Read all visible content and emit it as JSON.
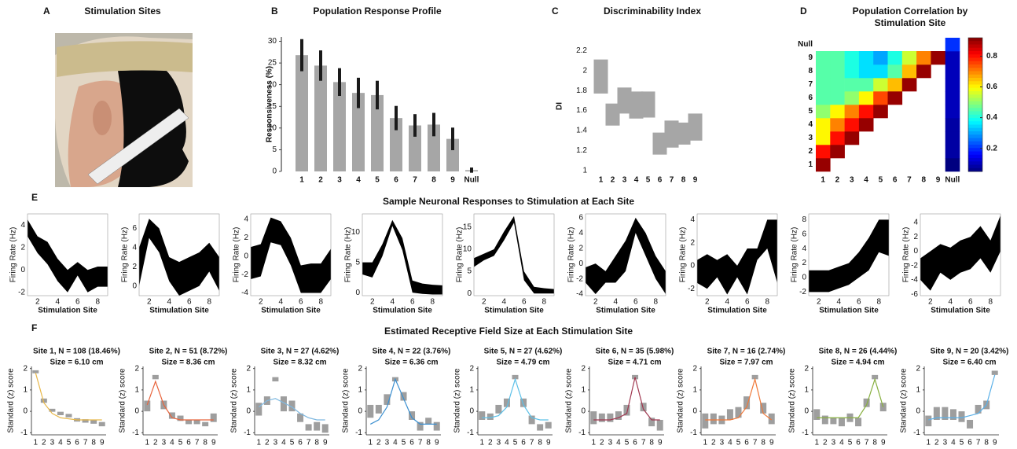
{
  "chart_data": [
    {
      "type": "image",
      "panel": "A",
      "title": "Stimulation Sites"
    },
    {
      "type": "bar",
      "panel": "B",
      "title": "Population Response Profile",
      "ylabel": "Responsiveness (%)",
      "categories": [
        "1",
        "2",
        "3",
        "4",
        "5",
        "6",
        "7",
        "8",
        "9",
        "Null"
      ],
      "values": [
        26.8,
        24.4,
        20.6,
        18.1,
        17.6,
        12.3,
        10.6,
        10.8,
        7.5,
        0.3
      ],
      "errors": [
        3.7,
        3.5,
        3.2,
        3.5,
        3.3,
        2.8,
        2.6,
        2.7,
        2.6,
        0.6
      ],
      "color": "#a6a6a6",
      "error_color": "#1a1a1a",
      "ylim": [
        0,
        31
      ],
      "yticks": [
        0,
        5,
        10,
        15,
        20,
        25,
        30
      ]
    },
    {
      "type": "range",
      "panel": "C",
      "title": "Discriminability Index",
      "ylabel": "DI",
      "categories": [
        "1",
        "2",
        "3",
        "4",
        "5",
        "6",
        "7",
        "8",
        "9"
      ],
      "low": [
        1.77,
        1.45,
        1.57,
        1.52,
        1.53,
        1.16,
        1.23,
        1.26,
        1.3
      ],
      "high": [
        2.11,
        1.67,
        1.83,
        1.79,
        1.79,
        1.38,
        1.5,
        1.48,
        1.57
      ],
      "color": "#a6a6a6",
      "ylim": [
        1,
        2.28
      ],
      "yticks": [
        1,
        1.2,
        1.4,
        1.6,
        1.8,
        2,
        2.2
      ]
    },
    {
      "type": "heatmap",
      "panel": "D",
      "title": [
        "Population Correlation by",
        "Stimulation Site"
      ],
      "categories": [
        "1",
        "2",
        "3",
        "4",
        "5",
        "6",
        "7",
        "8",
        "9",
        "Null"
      ],
      "matrix": [
        [
          0.9,
          null,
          null,
          null,
          null,
          null,
          null,
          null,
          null,
          0.05
        ],
        [
          0.8,
          0.9,
          null,
          null,
          null,
          null,
          null,
          null,
          null,
          0.08
        ],
        [
          0.6,
          0.8,
          0.9,
          null,
          null,
          null,
          null,
          null,
          null,
          0.08
        ],
        [
          0.6,
          0.7,
          0.8,
          0.9,
          null,
          null,
          null,
          null,
          null,
          0.08
        ],
        [
          0.5,
          0.6,
          0.7,
          0.8,
          0.9,
          null,
          null,
          null,
          null,
          0.1
        ],
        [
          0.45,
          0.45,
          0.5,
          0.6,
          0.75,
          0.9,
          null,
          null,
          null,
          0.1
        ],
        [
          0.45,
          0.45,
          0.45,
          0.45,
          0.55,
          0.65,
          0.9,
          null,
          null,
          0.1
        ],
        [
          0.45,
          0.45,
          0.4,
          0.35,
          0.35,
          0.45,
          0.65,
          0.9,
          null,
          0.1
        ],
        [
          0.45,
          0.45,
          0.4,
          0.35,
          0.3,
          0.4,
          0.55,
          0.7,
          0.9,
          0.1
        ],
        [
          null,
          null,
          null,
          null,
          null,
          null,
          null,
          null,
          null,
          0.2
        ]
      ],
      "clim": [
        0.05,
        0.92
      ],
      "cticks": [
        0.2,
        0.4,
        0.6,
        0.8
      ],
      "colormap": "jet"
    },
    {
      "type": "band",
      "panel": "E",
      "title": "Sample Neuronal Responses to Stimulation at Each Site",
      "xlabel": "Stimulation Site",
      "ylabel": "Firing Rate (Hz)",
      "color": "#000000",
      "x": [
        1,
        2,
        3,
        4,
        5,
        6,
        7,
        8,
        9
      ],
      "xlim": [
        1,
        9
      ],
      "xticks": [
        2,
        4,
        6,
        8
      ],
      "plots": [
        {
          "ylim": [
            -2.3,
            5
          ],
          "yticks": [
            -2,
            0,
            2,
            4
          ],
          "high": [
            4.5,
            3,
            2.5,
            1,
            0,
            0.7,
            0,
            0.3,
            0.3
          ],
          "low": [
            3,
            1.5,
            0.5,
            -1,
            -2,
            -0.5,
            -2,
            -1.5,
            -1.5
          ]
        },
        {
          "ylim": [
            -1,
            7.5
          ],
          "yticks": [
            0,
            2,
            4,
            6
          ],
          "high": [
            4,
            7,
            6,
            3,
            2.5,
            3,
            3.5,
            4.5,
            3
          ],
          "low": [
            0,
            5,
            3.5,
            0.5,
            -1,
            -0.5,
            0,
            1.5,
            -0.5
          ]
        },
        {
          "ylim": [
            -4.3,
            4.6
          ],
          "yticks": [
            -4,
            -2,
            0,
            2,
            4
          ],
          "high": [
            1,
            1.3,
            4.2,
            3.8,
            2,
            -1,
            -0.8,
            -0.8,
            0.8
          ],
          "low": [
            -2.5,
            -2.2,
            1.5,
            1.2,
            -1,
            -4,
            -4,
            -4,
            -2.5
          ]
        },
        {
          "ylim": [
            -0.5,
            13
          ],
          "yticks": [
            0,
            5,
            10
          ],
          "high": [
            5,
            5,
            8,
            12,
            9,
            2,
            1.5,
            1.3,
            1.2
          ],
          "low": [
            3,
            2.5,
            6,
            11,
            7,
            0,
            -0.2,
            -0.3,
            -0.3
          ]
        },
        {
          "ylim": [
            -0.5,
            18
          ],
          "yticks": [
            0,
            5,
            10,
            15
          ],
          "high": [
            8,
            9,
            10,
            14,
            17.5,
            5,
            1.5,
            1.2,
            1
          ],
          "low": [
            6,
            7.5,
            8.5,
            12,
            16,
            3,
            0,
            0,
            0
          ]
        },
        {
          "ylim": [
            -4.2,
            6.5
          ],
          "yticks": [
            -4,
            -2,
            0,
            2,
            4,
            6
          ],
          "high": [
            -0.5,
            0,
            -1,
            1,
            3,
            6,
            4,
            1,
            -1
          ],
          "low": [
            -2.5,
            -4,
            -2.5,
            -2.5,
            -1,
            4,
            1,
            -2,
            -4
          ]
        },
        {
          "ylim": [
            -2.6,
            4.5
          ],
          "yticks": [
            -2,
            0,
            2,
            4
          ],
          "high": [
            0.5,
            1,
            0.5,
            1,
            0,
            1.5,
            1.5,
            4,
            4
          ],
          "low": [
            -1.5,
            -2,
            -1,
            -2.5,
            -1,
            -2.5,
            0.5,
            1.5,
            -1.5
          ]
        },
        {
          "ylim": [
            -2.5,
            8.8
          ],
          "yticks": [
            -2,
            0,
            2,
            4,
            6,
            8
          ],
          "high": [
            1,
            1,
            1,
            1.5,
            2,
            3.5,
            5.5,
            8,
            8
          ],
          "low": [
            -2,
            -2,
            -2,
            -1.5,
            -1,
            0,
            1,
            3.5,
            3
          ]
        },
        {
          "ylim": [
            -6.2,
            5.2
          ],
          "yticks": [
            -6,
            -4,
            -2,
            0,
            2,
            4
          ],
          "high": [
            -1,
            0,
            1,
            0.5,
            1.5,
            2,
            3.5,
            1.5,
            5
          ],
          "low": [
            -4,
            -5.5,
            -3,
            -4,
            -3,
            -2.5,
            -1,
            -3,
            0
          ]
        }
      ]
    },
    {
      "type": "boxfit",
      "panel": "F",
      "title": "Estimated Receptive Field Size at Each Stimulation Site",
      "ylabel": "Standard (z) score",
      "categories": [
        "1",
        "2",
        "3",
        "4",
        "5",
        "6",
        "7",
        "8",
        "9"
      ],
      "ylim": [
        -1.1,
        2.1
      ],
      "yticks": [
        -1,
        0,
        1,
        2
      ],
      "box_color": "#9e9e9e",
      "plots": [
        {
          "title": "Site 1, N = 108 (18.46%)",
          "subtitle": "Size = 6.10 cm",
          "color": "#e8b84a",
          "low": [
            1.78,
            0.4,
            -0.02,
            -0.18,
            -0.28,
            -0.48,
            -0.53,
            -0.58,
            -0.7
          ],
          "high": [
            1.92,
            0.6,
            0.12,
            -0.02,
            -0.12,
            -0.32,
            -0.37,
            -0.42,
            -0.5
          ],
          "fit": [
            1.8,
            0.4,
            -0.1,
            -0.3,
            -0.35,
            -0.4,
            -0.4,
            -0.4,
            -0.4
          ]
        },
        {
          "title": "Site 2, N = 51 (8.72%)",
          "subtitle": "Size = 8.36 cm",
          "color": "#e8643c",
          "low": [
            0,
            1.5,
            0.1,
            -0.35,
            -0.45,
            -0.6,
            -0.6,
            -0.7,
            -0.5
          ],
          "high": [
            0.5,
            1.7,
            0.5,
            -0.05,
            -0.2,
            -0.4,
            -0.4,
            -0.5,
            -0.1
          ],
          "fit": [
            0.3,
            1.4,
            0.3,
            -0.3,
            -0.4,
            -0.4,
            -0.4,
            -0.4,
            -0.4
          ]
        },
        {
          "title": "Site 3, N = 27 (4.62%)",
          "subtitle": "Size = 8.32 cm",
          "color": "#7fb8e0",
          "low": [
            -0.2,
            0.3,
            1.4,
            0,
            0,
            -0.5,
            -0.9,
            -0.9,
            -1
          ],
          "high": [
            0.4,
            0.7,
            1.6,
            0.7,
            0.5,
            -0.1,
            -0.6,
            -0.5,
            -0.6
          ],
          "fit": [
            0.2,
            0.5,
            0.6,
            0.4,
            0.2,
            -0.1,
            -0.3,
            -0.4,
            -0.4
          ]
        },
        {
          "title": "Site 4, N = 22 (3.76%)",
          "subtitle": "Size = 6.36 cm",
          "color": "#3a8fd0",
          "low": [
            -0.3,
            -0.1,
            0.3,
            1.4,
            0.5,
            -0.4,
            -0.9,
            -0.6,
            -0.9
          ],
          "high": [
            0.3,
            0.3,
            0.8,
            1.6,
            0.9,
            0,
            -0.5,
            -0.3,
            -0.5
          ],
          "fit": [
            -0.6,
            -0.4,
            0.2,
            1.5,
            0.6,
            -0.3,
            -0.6,
            -0.6,
            -0.6
          ]
        },
        {
          "title": "Site 5, N = 27 (4.62%)",
          "subtitle": "Size = 4.79 cm",
          "color": "#5cc0e8",
          "low": [
            -0.4,
            -0.4,
            -0.1,
            0.2,
            1.5,
            0.2,
            -0.6,
            -0.9,
            -0.8
          ],
          "high": [
            0,
            -0.1,
            0.3,
            0.6,
            1.7,
            0.6,
            -0.2,
            -0.6,
            -0.5
          ],
          "fit": [
            -0.3,
            -0.3,
            -0.2,
            0.2,
            1.5,
            0.3,
            -0.3,
            -0.4,
            -0.4
          ]
        },
        {
          "title": "Site 6, N = 35 (5.98%)",
          "subtitle": "Size = 4.71 cm",
          "color": "#a03850",
          "low": [
            -0.6,
            -0.5,
            -0.5,
            -0.4,
            -0.2,
            1.5,
            0,
            -0.7,
            -0.9
          ],
          "high": [
            0,
            -0.1,
            -0.1,
            0,
            0.3,
            1.7,
            0.4,
            -0.3,
            -0.4
          ],
          "fit": [
            -0.4,
            -0.4,
            -0.4,
            -0.3,
            -0.1,
            1.6,
            0.1,
            -0.4,
            -0.4
          ]
        },
        {
          "title": "Site 7, N = 16 (2.74%)",
          "subtitle": "Size = 7.97 cm",
          "color": "#f07838",
          "low": [
            -0.8,
            -0.6,
            -0.6,
            -0.4,
            -0.3,
            0.1,
            1.5,
            -0.1,
            -0.6
          ],
          "high": [
            -0.1,
            -0.1,
            -0.2,
            0.1,
            0.2,
            0.7,
            1.7,
            0.4,
            -0.1
          ],
          "fit": [
            -0.4,
            -0.4,
            -0.4,
            -0.4,
            -0.3,
            0.2,
            1.5,
            -0.1,
            -0.4
          ]
        },
        {
          "title": "Site 8, N = 26 (4.44%)",
          "subtitle": "Size = 4.94 cm",
          "color": "#88b040",
          "low": [
            -0.4,
            -0.6,
            -0.6,
            -0.7,
            -0.5,
            -0.7,
            0.2,
            1.5,
            0
          ],
          "high": [
            0.1,
            -0.2,
            -0.3,
            -0.3,
            -0.1,
            -0.3,
            0.6,
            1.7,
            0.4
          ],
          "fit": [
            -0.3,
            -0.3,
            -0.3,
            -0.3,
            -0.3,
            -0.3,
            0.3,
            1.5,
            0.2
          ]
        },
        {
          "title": "Site 9, N = 20 (3.42%)",
          "subtitle": "Size = 6.40 cm",
          "color": "#5ab0e8",
          "low": [
            -0.7,
            -0.4,
            -0.4,
            -0.4,
            -0.5,
            -0.8,
            -0.1,
            0.1,
            1.7
          ],
          "high": [
            -0.2,
            0.2,
            0.2,
            0.1,
            0,
            -0.4,
            0.3,
            0.5,
            1.9
          ],
          "fit": [
            -0.4,
            -0.3,
            -0.3,
            -0.3,
            -0.3,
            -0.2,
            -0.1,
            0.3,
            1.7
          ]
        }
      ]
    }
  ]
}
